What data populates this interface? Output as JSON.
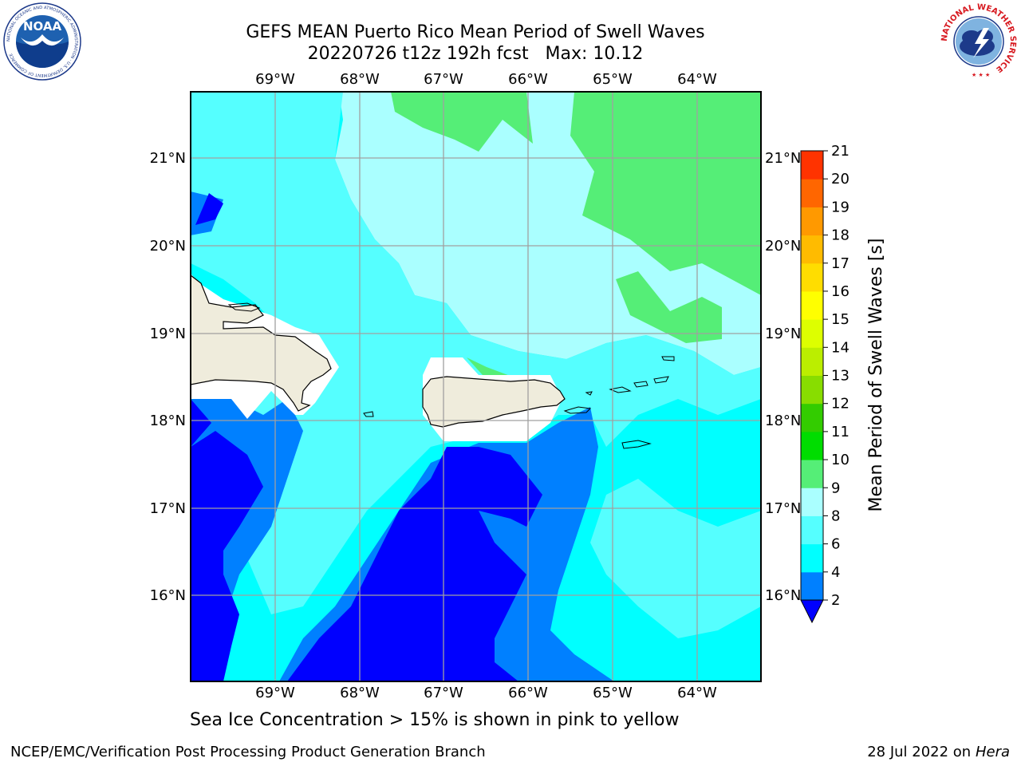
{
  "header": {
    "title_line1": "GEFS MEAN Puerto Rico Mean Period of Swell Waves",
    "title_line2": "20220726 t12z 192h fcst   Max: 10.12"
  },
  "map": {
    "lon_labels": [
      "69°W",
      "68°W",
      "67°W",
      "66°W",
      "65°W",
      "64°W"
    ],
    "lat_labels": [
      "21°N",
      "20°N",
      "19°N",
      "18°N",
      "17°N",
      "16°N"
    ],
    "background_color": "#00ffff",
    "land_color": "#efecdc",
    "gridline_color": "#a0a0a0"
  },
  "colorbar": {
    "label": "Mean Period of Swell Waves [s]",
    "ticks": [
      "2",
      "4",
      "6",
      "8",
      "9",
      "10",
      "11",
      "12",
      "13",
      "14",
      "15",
      "16",
      "17",
      "18",
      "19",
      "20",
      "21"
    ],
    "colors": [
      "#0000ff",
      "#0080ff",
      "#00ffff",
      "#55ffff",
      "#aaffff",
      "#55ee77",
      "#00dd00",
      "#33cc00",
      "#88dd00",
      "#bbee00",
      "#ddff00",
      "#ffff00",
      "#ffdd00",
      "#ffbb00",
      "#ff9900",
      "#ff6600",
      "#ff3300",
      "#ff0000"
    ],
    "extend": "min"
  },
  "caption": "Sea Ice Concentration > 15% is shown in pink to yellow",
  "footer": {
    "left": "NCEP/EMC/Verification Post Processing Product Generation Branch",
    "date": "28 Jul 2022 on ",
    "machine": "Hera"
  },
  "logos": {
    "noaa_text": "NOAA",
    "noaa_ring": "NATIONAL OCEANIC AND ATMOSPHERIC ADMINISTRATION · U.S. DEPARTMENT OF COMMERCE",
    "nws_ring": "NATIONAL WEATHER SERVICE"
  }
}
